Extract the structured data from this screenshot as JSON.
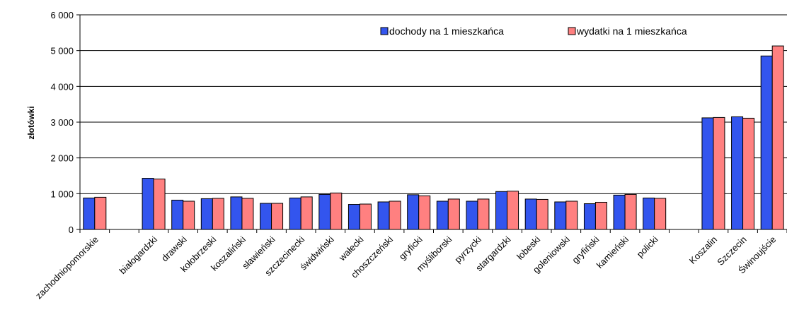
{
  "chart_data": {
    "type": "bar",
    "title": "",
    "xlabel": "",
    "ylabel": "złotówki",
    "ylim": [
      0,
      6000
    ],
    "yticks": [
      0,
      1000,
      2000,
      3000,
      4000,
      5000,
      6000
    ],
    "ytick_labels": [
      "0",
      "1 000",
      "2 000",
      "3 000",
      "4 000",
      "5 000",
      "6 000"
    ],
    "grid": true,
    "legend_position": "top-right",
    "categories": [
      "zachodniopomorskie",
      "",
      "białogardzki",
      "drawski",
      "kołobrzeski",
      "koszaliński",
      "sławieński",
      "szczecinecki",
      "świdwiński",
      "wałecki",
      "choszczeński",
      "gryficki",
      "myśliborski",
      "pyrzycki",
      "stargardzki",
      "łobeski",
      "goleniowski",
      "gryfiński",
      "kamieński",
      "policki",
      "",
      "Koszalin",
      "Szczecin",
      "Świnoujście"
    ],
    "series": [
      {
        "name": "dochody na 1 mieszkańca",
        "color": "#3355ee",
        "values": [
          880,
          null,
          1430,
          820,
          860,
          910,
          730,
          880,
          980,
          700,
          770,
          970,
          790,
          790,
          1060,
          850,
          770,
          720,
          960,
          880,
          null,
          3120,
          3150,
          4850
        ]
      },
      {
        "name": "wydatki na 1 mieszkańca",
        "color": "#ff8080",
        "values": [
          900,
          null,
          1410,
          790,
          870,
          870,
          730,
          910,
          1020,
          710,
          790,
          940,
          850,
          850,
          1070,
          840,
          790,
          760,
          980,
          870,
          null,
          3130,
          3110,
          5130
        ]
      }
    ]
  }
}
